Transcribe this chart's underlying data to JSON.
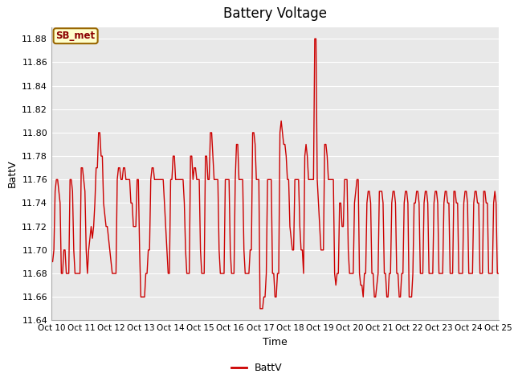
{
  "title": "Battery Voltage",
  "xlabel": "Time",
  "ylabel": "BattV",
  "ylim": [
    11.64,
    11.89
  ],
  "xlim": [
    0,
    360
  ],
  "xtick_positions": [
    0,
    24,
    48,
    72,
    96,
    120,
    144,
    168,
    192,
    216,
    240,
    264,
    288,
    312,
    336,
    360
  ],
  "xtick_labels": [
    "Oct 10",
    "Oct 11",
    "Oct 12",
    "Oct 13",
    "Oct 14",
    "Oct 15",
    "Oct 16",
    "Oct 17",
    "Oct 18",
    "Oct 19",
    "Oct 20",
    "Oct 21",
    "Oct 22",
    "Oct 23",
    "Oct 24",
    "Oct 25"
  ],
  "line_color": "#cc0000",
  "line_width": 1.0,
  "legend_label": "BattV",
  "annotation_text": "SB_met",
  "annotation_bg": "#ffffcc",
  "annotation_border": "#996600",
  "bg_color": "#e8e8e8",
  "grid_color": "#ffffff",
  "fig_bg": "#ffffff",
  "title_fontsize": 12,
  "events": [
    [
      0,
      11.69
    ],
    [
      1,
      11.69
    ],
    [
      2,
      11.7
    ],
    [
      3,
      11.75
    ],
    [
      4,
      11.76
    ],
    [
      5,
      11.76
    ],
    [
      6,
      11.75
    ],
    [
      7,
      11.74
    ],
    [
      8,
      11.68
    ],
    [
      9,
      11.68
    ],
    [
      10,
      11.7
    ],
    [
      11,
      11.7
    ],
    [
      12,
      11.68
    ],
    [
      13,
      11.68
    ],
    [
      14,
      11.68
    ],
    [
      15,
      11.76
    ],
    [
      16,
      11.76
    ],
    [
      17,
      11.75
    ],
    [
      18,
      11.7
    ],
    [
      19,
      11.68
    ],
    [
      20,
      11.68
    ],
    [
      21,
      11.68
    ],
    [
      22,
      11.68
    ],
    [
      23,
      11.68
    ],
    [
      24,
      11.77
    ],
    [
      25,
      11.77
    ],
    [
      26,
      11.76
    ],
    [
      27,
      11.75
    ],
    [
      28,
      11.7
    ],
    [
      29,
      11.68
    ],
    [
      30,
      11.7
    ],
    [
      31,
      11.71
    ],
    [
      32,
      11.72
    ],
    [
      33,
      11.71
    ],
    [
      34,
      11.72
    ],
    [
      35,
      11.74
    ],
    [
      36,
      11.77
    ],
    [
      37,
      11.77
    ],
    [
      38,
      11.8
    ],
    [
      39,
      11.8
    ],
    [
      40,
      11.78
    ],
    [
      41,
      11.78
    ],
    [
      42,
      11.74
    ],
    [
      43,
      11.73
    ],
    [
      44,
      11.72
    ],
    [
      45,
      11.72
    ],
    [
      46,
      11.71
    ],
    [
      47,
      11.7
    ],
    [
      48,
      11.69
    ],
    [
      49,
      11.68
    ],
    [
      50,
      11.68
    ],
    [
      51,
      11.68
    ],
    [
      52,
      11.68
    ],
    [
      53,
      11.76
    ],
    [
      54,
      11.77
    ],
    [
      55,
      11.77
    ],
    [
      56,
      11.76
    ],
    [
      57,
      11.76
    ],
    [
      58,
      11.77
    ],
    [
      59,
      11.77
    ],
    [
      60,
      11.76
    ],
    [
      61,
      11.76
    ],
    [
      62,
      11.76
    ],
    [
      63,
      11.76
    ],
    [
      64,
      11.74
    ],
    [
      65,
      11.74
    ],
    [
      66,
      11.72
    ],
    [
      67,
      11.72
    ],
    [
      68,
      11.72
    ],
    [
      69,
      11.76
    ],
    [
      70,
      11.76
    ],
    [
      71,
      11.7
    ],
    [
      72,
      11.66
    ],
    [
      73,
      11.66
    ],
    [
      74,
      11.66
    ],
    [
      75,
      11.66
    ],
    [
      76,
      11.68
    ],
    [
      77,
      11.68
    ],
    [
      78,
      11.7
    ],
    [
      79,
      11.7
    ],
    [
      80,
      11.76
    ],
    [
      81,
      11.77
    ],
    [
      82,
      11.77
    ],
    [
      83,
      11.76
    ],
    [
      84,
      11.76
    ],
    [
      85,
      11.76
    ],
    [
      86,
      11.76
    ],
    [
      87,
      11.76
    ],
    [
      88,
      11.76
    ],
    [
      89,
      11.76
    ],
    [
      90,
      11.76
    ],
    [
      91,
      11.74
    ],
    [
      92,
      11.72
    ],
    [
      93,
      11.7
    ],
    [
      94,
      11.68
    ],
    [
      95,
      11.68
    ],
    [
      96,
      11.76
    ],
    [
      97,
      11.76
    ],
    [
      98,
      11.78
    ],
    [
      99,
      11.78
    ],
    [
      100,
      11.76
    ],
    [
      101,
      11.76
    ],
    [
      102,
      11.76
    ],
    [
      103,
      11.76
    ],
    [
      104,
      11.76
    ],
    [
      105,
      11.76
    ],
    [
      106,
      11.76
    ],
    [
      107,
      11.74
    ],
    [
      108,
      11.7
    ],
    [
      109,
      11.68
    ],
    [
      110,
      11.68
    ],
    [
      111,
      11.68
    ],
    [
      112,
      11.78
    ],
    [
      113,
      11.78
    ],
    [
      114,
      11.76
    ],
    [
      115,
      11.77
    ],
    [
      116,
      11.77
    ],
    [
      117,
      11.76
    ],
    [
      118,
      11.76
    ],
    [
      119,
      11.76
    ],
    [
      120,
      11.7
    ],
    [
      121,
      11.68
    ],
    [
      122,
      11.68
    ],
    [
      123,
      11.68
    ],
    [
      124,
      11.78
    ],
    [
      125,
      11.78
    ],
    [
      126,
      11.76
    ],
    [
      127,
      11.76
    ],
    [
      128,
      11.8
    ],
    [
      129,
      11.8
    ],
    [
      130,
      11.78
    ],
    [
      131,
      11.76
    ],
    [
      132,
      11.76
    ],
    [
      133,
      11.76
    ],
    [
      134,
      11.76
    ],
    [
      135,
      11.7
    ],
    [
      136,
      11.68
    ],
    [
      137,
      11.68
    ],
    [
      138,
      11.68
    ],
    [
      139,
      11.68
    ],
    [
      140,
      11.76
    ],
    [
      141,
      11.76
    ],
    [
      142,
      11.76
    ],
    [
      143,
      11.76
    ],
    [
      144,
      11.7
    ],
    [
      145,
      11.68
    ],
    [
      146,
      11.68
    ],
    [
      147,
      11.68
    ],
    [
      148,
      11.76
    ],
    [
      149,
      11.79
    ],
    [
      150,
      11.79
    ],
    [
      151,
      11.76
    ],
    [
      152,
      11.76
    ],
    [
      153,
      11.76
    ],
    [
      154,
      11.76
    ],
    [
      155,
      11.7
    ],
    [
      156,
      11.68
    ],
    [
      157,
      11.68
    ],
    [
      158,
      11.68
    ],
    [
      159,
      11.68
    ],
    [
      160,
      11.7
    ],
    [
      161,
      11.7
    ],
    [
      162,
      11.8
    ],
    [
      163,
      11.8
    ],
    [
      164,
      11.79
    ],
    [
      165,
      11.76
    ],
    [
      166,
      11.76
    ],
    [
      167,
      11.76
    ],
    [
      168,
      11.65
    ],
    [
      169,
      11.65
    ],
    [
      170,
      11.65
    ],
    [
      171,
      11.66
    ],
    [
      172,
      11.66
    ],
    [
      173,
      11.68
    ],
    [
      174,
      11.76
    ],
    [
      175,
      11.76
    ],
    [
      176,
      11.76
    ],
    [
      177,
      11.76
    ],
    [
      178,
      11.68
    ],
    [
      179,
      11.68
    ],
    [
      180,
      11.66
    ],
    [
      181,
      11.66
    ],
    [
      182,
      11.68
    ],
    [
      183,
      11.68
    ],
    [
      184,
      11.8
    ],
    [
      185,
      11.81
    ],
    [
      186,
      11.8
    ],
    [
      187,
      11.79
    ],
    [
      188,
      11.79
    ],
    [
      189,
      11.78
    ],
    [
      190,
      11.76
    ],
    [
      191,
      11.76
    ],
    [
      192,
      11.72
    ],
    [
      193,
      11.71
    ],
    [
      194,
      11.7
    ],
    [
      195,
      11.7
    ],
    [
      196,
      11.76
    ],
    [
      197,
      11.76
    ],
    [
      198,
      11.76
    ],
    [
      199,
      11.76
    ],
    [
      200,
      11.72
    ],
    [
      201,
      11.7
    ],
    [
      202,
      11.7
    ],
    [
      203,
      11.68
    ],
    [
      204,
      11.78
    ],
    [
      205,
      11.79
    ],
    [
      206,
      11.78
    ],
    [
      207,
      11.76
    ],
    [
      208,
      11.76
    ],
    [
      209,
      11.76
    ],
    [
      210,
      11.76
    ],
    [
      211,
      11.76
    ],
    [
      212,
      11.88
    ],
    [
      213,
      11.88
    ],
    [
      214,
      11.76
    ],
    [
      215,
      11.74
    ],
    [
      216,
      11.72
    ],
    [
      217,
      11.7
    ],
    [
      218,
      11.7
    ],
    [
      219,
      11.7
    ],
    [
      220,
      11.79
    ],
    [
      221,
      11.79
    ],
    [
      222,
      11.78
    ],
    [
      223,
      11.76
    ],
    [
      224,
      11.76
    ],
    [
      225,
      11.76
    ],
    [
      226,
      11.76
    ],
    [
      227,
      11.76
    ],
    [
      228,
      11.68
    ],
    [
      229,
      11.67
    ],
    [
      230,
      11.68
    ],
    [
      231,
      11.68
    ],
    [
      232,
      11.74
    ],
    [
      233,
      11.74
    ],
    [
      234,
      11.72
    ],
    [
      235,
      11.72
    ],
    [
      236,
      11.76
    ],
    [
      237,
      11.76
    ],
    [
      238,
      11.76
    ],
    [
      239,
      11.7
    ],
    [
      240,
      11.68
    ],
    [
      241,
      11.68
    ],
    [
      242,
      11.68
    ],
    [
      243,
      11.68
    ],
    [
      244,
      11.74
    ],
    [
      245,
      11.75
    ],
    [
      246,
      11.76
    ],
    [
      247,
      11.76
    ],
    [
      248,
      11.68
    ],
    [
      249,
      11.67
    ],
    [
      250,
      11.67
    ],
    [
      251,
      11.66
    ],
    [
      252,
      11.68
    ],
    [
      253,
      11.68
    ],
    [
      254,
      11.74
    ],
    [
      255,
      11.75
    ],
    [
      256,
      11.75
    ],
    [
      257,
      11.74
    ],
    [
      258,
      11.68
    ],
    [
      259,
      11.68
    ],
    [
      260,
      11.66
    ],
    [
      261,
      11.66
    ],
    [
      262,
      11.67
    ],
    [
      263,
      11.68
    ],
    [
      264,
      11.75
    ],
    [
      265,
      11.75
    ],
    [
      266,
      11.75
    ],
    [
      267,
      11.74
    ],
    [
      268,
      11.68
    ],
    [
      269,
      11.68
    ],
    [
      270,
      11.66
    ],
    [
      271,
      11.66
    ],
    [
      272,
      11.68
    ],
    [
      273,
      11.68
    ],
    [
      274,
      11.74
    ],
    [
      275,
      11.75
    ],
    [
      276,
      11.75
    ],
    [
      277,
      11.74
    ],
    [
      278,
      11.68
    ],
    [
      279,
      11.68
    ],
    [
      280,
      11.66
    ],
    [
      281,
      11.66
    ],
    [
      282,
      11.68
    ],
    [
      283,
      11.68
    ],
    [
      284,
      11.74
    ],
    [
      285,
      11.75
    ],
    [
      286,
      11.75
    ],
    [
      287,
      11.74
    ],
    [
      288,
      11.66
    ],
    [
      289,
      11.66
    ],
    [
      290,
      11.66
    ],
    [
      291,
      11.68
    ],
    [
      292,
      11.74
    ],
    [
      293,
      11.74
    ],
    [
      294,
      11.75
    ],
    [
      295,
      11.75
    ],
    [
      296,
      11.74
    ],
    [
      297,
      11.68
    ],
    [
      298,
      11.68
    ],
    [
      299,
      11.68
    ],
    [
      300,
      11.74
    ],
    [
      301,
      11.75
    ],
    [
      302,
      11.75
    ],
    [
      303,
      11.74
    ],
    [
      304,
      11.68
    ],
    [
      305,
      11.68
    ],
    [
      306,
      11.68
    ],
    [
      307,
      11.68
    ],
    [
      308,
      11.74
    ],
    [
      309,
      11.75
    ],
    [
      310,
      11.75
    ],
    [
      311,
      11.74
    ],
    [
      312,
      11.68
    ],
    [
      313,
      11.68
    ],
    [
      314,
      11.68
    ],
    [
      315,
      11.68
    ],
    [
      316,
      11.74
    ],
    [
      317,
      11.75
    ],
    [
      318,
      11.75
    ],
    [
      319,
      11.74
    ],
    [
      320,
      11.74
    ],
    [
      321,
      11.68
    ],
    [
      322,
      11.68
    ],
    [
      323,
      11.68
    ],
    [
      324,
      11.75
    ],
    [
      325,
      11.75
    ],
    [
      326,
      11.74
    ],
    [
      327,
      11.74
    ],
    [
      328,
      11.68
    ],
    [
      329,
      11.68
    ],
    [
      330,
      11.68
    ],
    [
      331,
      11.68
    ],
    [
      332,
      11.74
    ],
    [
      333,
      11.75
    ],
    [
      334,
      11.75
    ],
    [
      335,
      11.74
    ],
    [
      336,
      11.68
    ],
    [
      337,
      11.68
    ],
    [
      338,
      11.68
    ],
    [
      339,
      11.68
    ],
    [
      340,
      11.74
    ],
    [
      341,
      11.75
    ],
    [
      342,
      11.75
    ],
    [
      343,
      11.74
    ],
    [
      344,
      11.74
    ],
    [
      345,
      11.68
    ],
    [
      346,
      11.68
    ],
    [
      347,
      11.68
    ],
    [
      348,
      11.75
    ],
    [
      349,
      11.75
    ],
    [
      350,
      11.74
    ],
    [
      351,
      11.74
    ],
    [
      352,
      11.68
    ],
    [
      353,
      11.68
    ],
    [
      354,
      11.68
    ],
    [
      355,
      11.68
    ],
    [
      356,
      11.74
    ],
    [
      357,
      11.75
    ],
    [
      358,
      11.74
    ],
    [
      359,
      11.68
    ],
    [
      360,
      11.68
    ]
  ]
}
